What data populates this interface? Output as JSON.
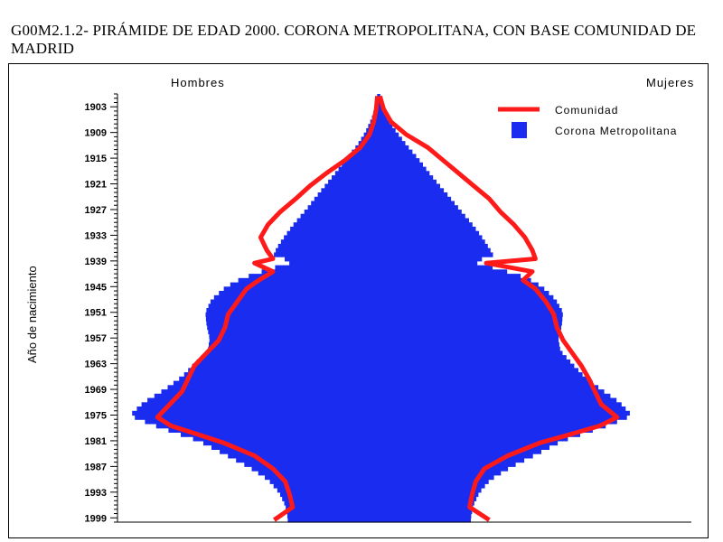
{
  "title": "G00M2.1.2- PIRÁMIDE DE EDAD 2000.  CORONA METROPOLITANA, CON BASE COMUNIDAD DE MADRID",
  "colors": {
    "metro": "#1a2cf0",
    "comunidad": "#ff1a1a",
    "axis": "#000000"
  },
  "chart_data": {
    "type": "population-pyramid",
    "title": "G00M2.1.2- PIRÁMIDE DE EDAD 2000.  CORONA METROPOLITANA, CON BASE COMUNIDAD DE MADRID",
    "ylabel": "Año de nacimiento",
    "left_label": "Hombres",
    "right_label": "Mujeres",
    "ylim": [
      1900,
      2000
    ],
    "yticks": [
      1903,
      1909,
      1915,
      1921,
      1927,
      1933,
      1939,
      1945,
      1951,
      1957,
      1963,
      1969,
      1975,
      1981,
      1987,
      1993,
      1999
    ],
    "legend": [
      {
        "name": "Comunidad",
        "style": "line",
        "color": "#ff1a1a"
      },
      {
        "name": "Corona Metropolitana",
        "style": "bar",
        "color": "#1a2cf0"
      }
    ],
    "legend_position": "top-right",
    "series": [
      {
        "name": "Corona Metropolitana",
        "x": [
          1900,
          1903,
          1906,
          1909,
          1912,
          1915,
          1918,
          1921,
          1924,
          1927,
          1930,
          1933,
          1936,
          1938,
          1939,
          1941,
          1943,
          1945,
          1948,
          1951,
          1954,
          1957,
          1960,
          1963,
          1966,
          1969,
          1972,
          1975,
          1977,
          1979,
          1981,
          1984,
          1987,
          1990,
          1993,
          1996,
          1999
        ],
        "hombres": [
          0.02,
          0.05,
          0.12,
          0.22,
          0.35,
          0.52,
          0.68,
          0.85,
          1.02,
          1.18,
          1.36,
          1.52,
          1.66,
          1.72,
          1.34,
          1.8,
          2.22,
          2.48,
          2.72,
          2.82,
          2.8,
          2.75,
          2.78,
          3.0,
          3.2,
          3.48,
          3.82,
          4.05,
          3.72,
          3.32,
          2.92,
          2.52,
          2.12,
          1.8,
          1.62,
          1.52,
          1.48
        ],
        "mujeres": [
          0.02,
          0.06,
          0.15,
          0.3,
          0.46,
          0.64,
          0.8,
          0.97,
          1.15,
          1.32,
          1.5,
          1.66,
          1.8,
          1.88,
          1.48,
          1.98,
          2.42,
          2.66,
          2.88,
          3.0,
          2.98,
          2.92,
          2.96,
          3.15,
          3.35,
          3.62,
          3.92,
          4.12,
          3.8,
          3.38,
          2.98,
          2.58,
          2.16,
          1.82,
          1.64,
          1.54,
          1.5
        ]
      },
      {
        "name": "Comunidad",
        "x": [
          1900,
          1903,
          1906,
          1909,
          1912,
          1915,
          1918,
          1921,
          1924,
          1927,
          1930,
          1933,
          1936,
          1938,
          1939,
          1941,
          1943,
          1945,
          1948,
          1951,
          1954,
          1957,
          1960,
          1963,
          1966,
          1969,
          1972,
          1975,
          1977,
          1979,
          1981,
          1984,
          1987,
          1990,
          1993,
          1996,
          1999
        ],
        "hombres": [
          0.02,
          0.04,
          0.08,
          0.15,
          0.3,
          0.55,
          0.85,
          1.12,
          1.35,
          1.6,
          1.8,
          1.92,
          1.82,
          1.72,
          2.02,
          1.72,
          1.95,
          2.15,
          2.3,
          2.45,
          2.5,
          2.6,
          2.8,
          3.0,
          3.1,
          3.2,
          3.4,
          3.6,
          3.38,
          2.95,
          2.52,
          2.02,
          1.72,
          1.52,
          1.45,
          1.4,
          1.7
        ],
        "mujeres": [
          0.02,
          0.08,
          0.2,
          0.45,
          0.8,
          1.05,
          1.3,
          1.55,
          1.8,
          1.98,
          2.2,
          2.38,
          2.5,
          2.55,
          1.75,
          2.5,
          2.35,
          2.55,
          2.72,
          2.85,
          2.9,
          3.0,
          3.15,
          3.3,
          3.42,
          3.52,
          3.62,
          3.88,
          3.6,
          3.12,
          2.62,
          2.1,
          1.72,
          1.58,
          1.52,
          1.48,
          1.8
        ]
      }
    ]
  }
}
